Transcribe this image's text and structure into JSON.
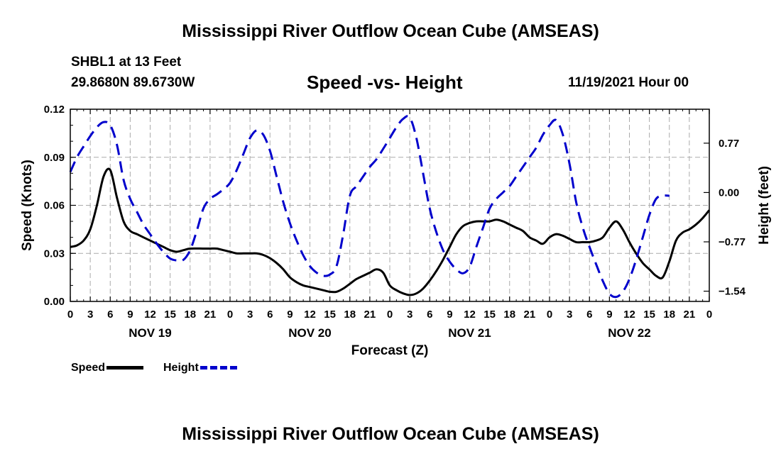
{
  "header": {
    "main_title": "Mississippi River Outflow Ocean Cube (AMSEAS)",
    "station": "SHBL1 at 13 Feet",
    "coords": "29.8680N  89.6730W",
    "subtitle": "Speed -vs- Height",
    "datetime": "11/19/2021 Hour 00"
  },
  "footer": {
    "title": "Mississippi River Outflow Ocean Cube (AMSEAS)"
  },
  "legend": [
    {
      "label": "Speed",
      "color": "#000000"
    },
    {
      "label": "Height",
      "color": "#0000cc"
    }
  ],
  "chart_data": {
    "type": "line",
    "title": "Speed -vs- Height",
    "xlabel": "Forecast (Z)",
    "ylabel_left": "Speed (Knots)",
    "ylabel_right": "Height (feet)",
    "x_range_hours": [
      0,
      96
    ],
    "x_tick_labels": [
      "0",
      "3",
      "6",
      "9",
      "12",
      "15",
      "18",
      "21",
      "0",
      "3",
      "6",
      "9",
      "12",
      "15",
      "18",
      "21",
      "0",
      "3",
      "6",
      "9",
      "12",
      "15",
      "18",
      "21",
      "0",
      "3",
      "6",
      "9",
      "12",
      "15",
      "18",
      "21",
      "0"
    ],
    "day_labels": [
      {
        "hour": 12,
        "label": "NOV 19"
      },
      {
        "hour": 36,
        "label": "NOV 20"
      },
      {
        "hour": 60,
        "label": "NOV 21"
      },
      {
        "hour": 84,
        "label": "NOV 22"
      }
    ],
    "left_axis": {
      "min": 0,
      "max": 0.12,
      "ticks": [
        "0.00",
        "0.03",
        "0.06",
        "0.09",
        "0.12"
      ],
      "tick_values": [
        0,
        0.03,
        0.06,
        0.09,
        0.12
      ]
    },
    "right_axis": {
      "min": -1.7,
      "max": 1.3,
      "ticks": [
        "0.77",
        "0.00",
        "−0.77",
        "−1.54"
      ],
      "tick_values": [
        0.77,
        0,
        -0.77,
        -1.54
      ]
    },
    "series": [
      {
        "name": "Speed",
        "axis": "left",
        "color": "#000000",
        "dash": "solid",
        "points": [
          [
            0,
            0.034
          ],
          [
            1,
            0.035
          ],
          [
            2,
            0.038
          ],
          [
            3,
            0.045
          ],
          [
            4,
            0.06
          ],
          [
            5,
            0.078
          ],
          [
            6,
            0.082
          ],
          [
            7,
            0.065
          ],
          [
            8,
            0.05
          ],
          [
            9,
            0.044
          ],
          [
            10,
            0.042
          ],
          [
            11,
            0.04
          ],
          [
            12,
            0.038
          ],
          [
            13,
            0.036
          ],
          [
            14,
            0.034
          ],
          [
            15,
            0.032
          ],
          [
            16,
            0.031
          ],
          [
            17,
            0.032
          ],
          [
            18,
            0.033
          ],
          [
            20,
            0.033
          ],
          [
            21,
            0.033
          ],
          [
            22,
            0.033
          ],
          [
            23,
            0.032
          ],
          [
            24,
            0.031
          ],
          [
            25,
            0.03
          ],
          [
            26,
            0.03
          ],
          [
            27,
            0.03
          ],
          [
            28,
            0.03
          ],
          [
            29,
            0.029
          ],
          [
            30,
            0.027
          ],
          [
            31,
            0.024
          ],
          [
            32,
            0.02
          ],
          [
            33,
            0.015
          ],
          [
            34,
            0.012
          ],
          [
            35,
            0.01
          ],
          [
            36,
            0.009
          ],
          [
            37,
            0.008
          ],
          [
            38,
            0.007
          ],
          [
            39,
            0.006
          ],
          [
            40,
            0.006
          ],
          [
            41,
            0.008
          ],
          [
            42,
            0.011
          ],
          [
            43,
            0.014
          ],
          [
            44,
            0.016
          ],
          [
            45,
            0.018
          ],
          [
            46,
            0.02
          ],
          [
            47,
            0.018
          ],
          [
            48,
            0.01
          ],
          [
            49,
            0.007
          ],
          [
            50,
            0.005
          ],
          [
            51,
            0.004
          ],
          [
            52,
            0.005
          ],
          [
            53,
            0.008
          ],
          [
            54,
            0.013
          ],
          [
            55,
            0.019
          ],
          [
            56,
            0.026
          ],
          [
            57,
            0.034
          ],
          [
            58,
            0.042
          ],
          [
            59,
            0.047
          ],
          [
            60,
            0.049
          ],
          [
            61,
            0.05
          ],
          [
            62,
            0.05
          ],
          [
            63,
            0.05
          ],
          [
            64,
            0.051
          ],
          [
            65,
            0.05
          ],
          [
            66,
            0.048
          ],
          [
            67,
            0.046
          ],
          [
            68,
            0.044
          ],
          [
            69,
            0.04
          ],
          [
            70,
            0.038
          ],
          [
            71,
            0.036
          ],
          [
            72,
            0.04
          ],
          [
            73,
            0.042
          ],
          [
            74,
            0.041
          ],
          [
            75,
            0.039
          ],
          [
            76,
            0.037
          ],
          [
            77,
            0.037
          ],
          [
            78,
            0.037
          ],
          [
            79,
            0.038
          ],
          [
            80,
            0.04
          ],
          [
            81,
            0.046
          ],
          [
            82,
            0.05
          ],
          [
            83,
            0.045
          ],
          [
            84,
            0.037
          ],
          [
            85,
            0.03
          ],
          [
            86,
            0.024
          ],
          [
            87,
            0.02
          ],
          [
            88,
            0.016
          ],
          [
            89,
            0.015
          ],
          [
            90,
            0.025
          ],
          [
            91,
            0.038
          ],
          [
            92,
            0.043
          ],
          [
            93,
            0.045
          ],
          [
            94,
            0.048
          ],
          [
            95,
            0.052
          ],
          [
            96,
            0.057
          ]
        ]
      },
      {
        "name": "Height",
        "axis": "right",
        "color": "#0000cc",
        "dash": "dashed",
        "points": [
          [
            0,
            0.32
          ],
          [
            1,
            0.55
          ],
          [
            2,
            0.72
          ],
          [
            3,
            0.88
          ],
          [
            4,
            1.02
          ],
          [
            5,
            1.1
          ],
          [
            6,
            1.05
          ],
          [
            7,
            0.75
          ],
          [
            8,
            0.2
          ],
          [
            9,
            -0.1
          ],
          [
            10,
            -0.3
          ],
          [
            11,
            -0.5
          ],
          [
            12,
            -0.65
          ],
          [
            13,
            -0.8
          ],
          [
            14,
            -0.93
          ],
          [
            15,
            -1.03
          ],
          [
            16,
            -1.06
          ],
          [
            17,
            -1.05
          ],
          [
            18,
            -0.9
          ],
          [
            19,
            -0.6
          ],
          [
            20,
            -0.25
          ],
          [
            21,
            -0.1
          ],
          [
            22,
            -0.03
          ],
          [
            23,
            0.05
          ],
          [
            24,
            0.15
          ],
          [
            25,
            0.35
          ],
          [
            26,
            0.6
          ],
          [
            27,
            0.85
          ],
          [
            28,
            0.97
          ],
          [
            29,
            0.9
          ],
          [
            30,
            0.65
          ],
          [
            31,
            0.25
          ],
          [
            32,
            -0.15
          ],
          [
            33,
            -0.48
          ],
          [
            34,
            -0.75
          ],
          [
            35,
            -0.98
          ],
          [
            36,
            -1.15
          ],
          [
            37,
            -1.25
          ],
          [
            38,
            -1.3
          ],
          [
            39,
            -1.28
          ],
          [
            40,
            -1.15
          ],
          [
            41,
            -0.65
          ],
          [
            42,
            -0.05
          ],
          [
            43,
            0.1
          ],
          [
            44,
            0.25
          ],
          [
            45,
            0.4
          ],
          [
            46,
            0.52
          ],
          [
            47,
            0.68
          ],
          [
            48,
            0.85
          ],
          [
            49,
            1.02
          ],
          [
            50,
            1.15
          ],
          [
            51,
            1.17
          ],
          [
            52,
            0.85
          ],
          [
            53,
            0.3
          ],
          [
            54,
            -0.25
          ],
          [
            55,
            -0.62
          ],
          [
            56,
            -0.9
          ],
          [
            57,
            -1.08
          ],
          [
            58,
            -1.2
          ],
          [
            59,
            -1.26
          ],
          [
            60,
            -1.16
          ],
          [
            61,
            -0.85
          ],
          [
            62,
            -0.55
          ],
          [
            63,
            -0.25
          ],
          [
            64,
            -0.1
          ],
          [
            65,
            0.0
          ],
          [
            66,
            0.1
          ],
          [
            67,
            0.25
          ],
          [
            68,
            0.4
          ],
          [
            69,
            0.55
          ],
          [
            70,
            0.7
          ],
          [
            71,
            0.9
          ],
          [
            72,
            1.05
          ],
          [
            73,
            1.13
          ],
          [
            74,
            0.9
          ],
          [
            75,
            0.45
          ],
          [
            76,
            -0.15
          ],
          [
            77,
            -0.55
          ],
          [
            78,
            -0.85
          ],
          [
            79,
            -1.12
          ],
          [
            80,
            -1.38
          ],
          [
            81,
            -1.58
          ],
          [
            82,
            -1.63
          ],
          [
            83,
            -1.55
          ],
          [
            84,
            -1.35
          ],
          [
            85,
            -1.05
          ],
          [
            86,
            -0.7
          ],
          [
            87,
            -0.35
          ],
          [
            88,
            -0.1
          ],
          [
            89,
            -0.05
          ],
          [
            90,
            -0.05
          ]
        ]
      }
    ]
  }
}
